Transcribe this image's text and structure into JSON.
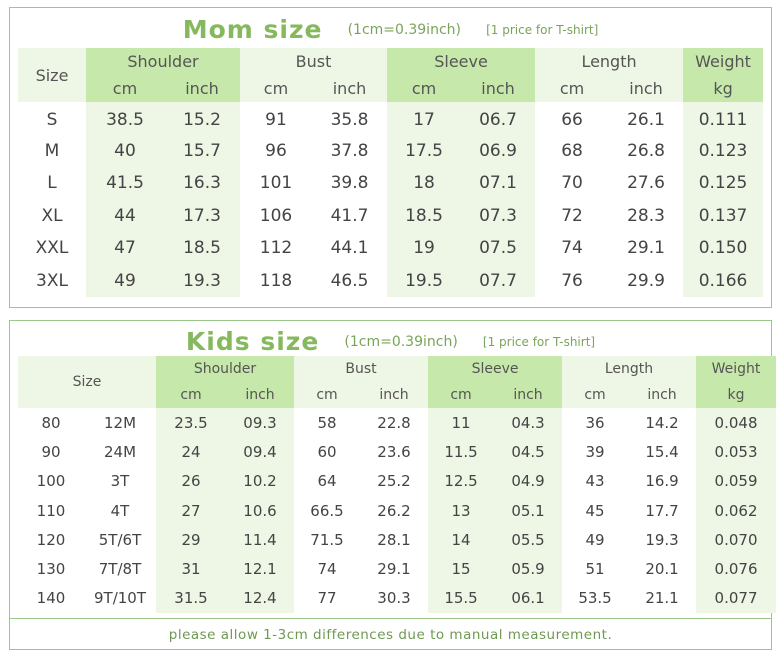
{
  "mom": {
    "title": "Mom size",
    "unit_note": "(1cm=0.39inch)",
    "price_note": "[1 price for T-shirt]",
    "size_label": "Size",
    "groups": [
      "Shoulder",
      "Bust",
      "Sleeve",
      "Length",
      "Weight"
    ],
    "sub_cm": "cm",
    "sub_inch": "inch",
    "sub_kg": "kg",
    "rows": [
      [
        "S",
        "38.5",
        "15.2",
        "91",
        "35.8",
        "17",
        "06.7",
        "66",
        "26.1",
        "0.111"
      ],
      [
        "M",
        "40",
        "15.7",
        "96",
        "37.8",
        "17.5",
        "06.9",
        "68",
        "26.8",
        "0.123"
      ],
      [
        "L",
        "41.5",
        "16.3",
        "101",
        "39.8",
        "18",
        "07.1",
        "70",
        "27.6",
        "0.125"
      ],
      [
        "XL",
        "44",
        "17.3",
        "106",
        "41.7",
        "18.5",
        "07.3",
        "72",
        "28.3",
        "0.137"
      ],
      [
        "XXL",
        "47",
        "18.5",
        "112",
        "44.1",
        "19",
        "07.5",
        "74",
        "29.1",
        "0.150"
      ],
      [
        "3XL",
        "49",
        "19.3",
        "118",
        "46.5",
        "19.5",
        "07.7",
        "76",
        "29.9",
        "0.166"
      ]
    ]
  },
  "kids": {
    "title": "Kids size",
    "unit_note": "(1cm=0.39inch)",
    "price_note": "[1 price for T-shirt]",
    "size_label": "Size",
    "groups": [
      "Shoulder",
      "Bust",
      "Sleeve",
      "Length",
      "Weight"
    ],
    "sub_cm": "cm",
    "sub_inch": "inch",
    "sub_kg": "kg",
    "rows": [
      [
        "80",
        "12M",
        "23.5",
        "09.3",
        "58",
        "22.8",
        "11",
        "04.3",
        "36",
        "14.2",
        "0.048"
      ],
      [
        "90",
        "24M",
        "24",
        "09.4",
        "60",
        "23.6",
        "11.5",
        "04.5",
        "39",
        "15.4",
        "0.053"
      ],
      [
        "100",
        "3T",
        "26",
        "10.2",
        "64",
        "25.2",
        "12.5",
        "04.9",
        "43",
        "16.9",
        "0.059"
      ],
      [
        "110",
        "4T",
        "27",
        "10.6",
        "66.5",
        "26.2",
        "13",
        "05.1",
        "45",
        "17.7",
        "0.062"
      ],
      [
        "120",
        "5T/6T",
        "29",
        "11.4",
        "71.5",
        "28.1",
        "14",
        "05.5",
        "49",
        "19.3",
        "0.070"
      ],
      [
        "130",
        "7T/8T",
        "31",
        "12.1",
        "74",
        "29.1",
        "15",
        "05.9",
        "51",
        "20.1",
        "0.076"
      ],
      [
        "140",
        "9T/10T",
        "31.5",
        "12.4",
        "77",
        "30.3",
        "15.5",
        "06.1",
        "53.5",
        "21.1",
        "0.077"
      ]
    ],
    "footnote": "please allow 1-3cm differences due to manual measurement."
  }
}
